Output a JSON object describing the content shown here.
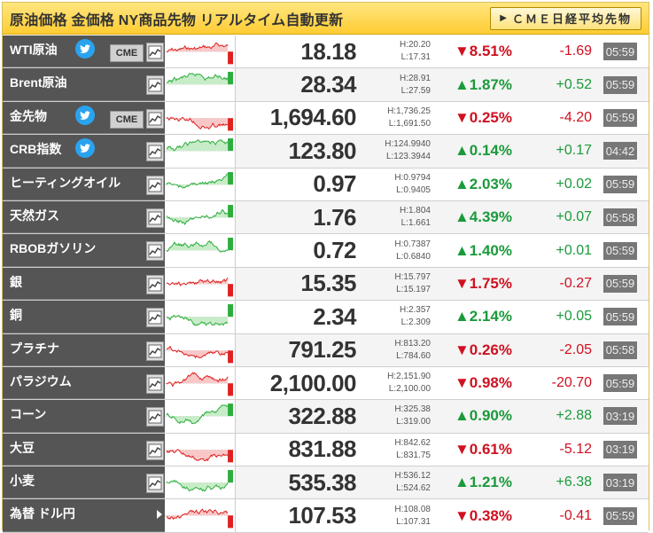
{
  "header": {
    "title": "原油価格 金価格 NY商品先物 リアルタイム自動更新",
    "button_label": "ＣＭＥ日経平均先物"
  },
  "rows": [
    {
      "name": "WTI原油",
      "twitter": true,
      "cme": true,
      "price": "18.18",
      "high": "H:20.20",
      "low": "L:17.31",
      "pct": "▼8.51%",
      "chg": "-1.69",
      "time": "05:59",
      "dir": "down"
    },
    {
      "name": "Brent原油",
      "twitter": false,
      "cme": false,
      "price": "28.34",
      "high": "H:28.91",
      "low": "L:27.59",
      "pct": "▲1.87%",
      "chg": "+0.52",
      "time": "05:59",
      "dir": "up"
    },
    {
      "name": "金先物",
      "twitter": true,
      "cme": true,
      "price": "1,694.60",
      "high": "H:1,736.25",
      "low": "L:1,691.50",
      "pct": "▼0.25%",
      "chg": "-4.20",
      "time": "05:59",
      "dir": "down"
    },
    {
      "name": "CRB指数",
      "twitter": true,
      "cme": false,
      "price": "123.80",
      "high": "H:124.9940",
      "low": "L:123.3944",
      "pct": "▲0.14%",
      "chg": "+0.17",
      "time": "04:42",
      "dir": "up"
    },
    {
      "name": "ヒーティングオイル",
      "twitter": false,
      "cme": false,
      "price": "0.97",
      "high": "H:0.9794",
      "low": "L:0.9405",
      "pct": "▲2.03%",
      "chg": "+0.02",
      "time": "05:59",
      "dir": "up"
    },
    {
      "name": "天然ガス",
      "twitter": false,
      "cme": false,
      "price": "1.76",
      "high": "H:1.804",
      "low": "L:1.661",
      "pct": "▲4.39%",
      "chg": "+0.07",
      "time": "05:58",
      "dir": "up"
    },
    {
      "name": "RBOBガソリン",
      "twitter": false,
      "cme": false,
      "price": "0.72",
      "high": "H:0.7387",
      "low": "L:0.6840",
      "pct": "▲1.40%",
      "chg": "+0.01",
      "time": "05:59",
      "dir": "up"
    },
    {
      "name": "銀",
      "twitter": false,
      "cme": false,
      "price": "15.35",
      "high": "H:15.797",
      "low": "L:15.197",
      "pct": "▼1.75%",
      "chg": "-0.27",
      "time": "05:59",
      "dir": "down"
    },
    {
      "name": "銅",
      "twitter": false,
      "cme": false,
      "price": "2.34",
      "high": "H:2.357",
      "low": "L:2.309",
      "pct": "▲2.14%",
      "chg": "+0.05",
      "time": "05:59",
      "dir": "up"
    },
    {
      "name": "プラチナ",
      "twitter": false,
      "cme": false,
      "price": "791.25",
      "high": "H:813.20",
      "low": "L:784.60",
      "pct": "▼0.26%",
      "chg": "-2.05",
      "time": "05:58",
      "dir": "down"
    },
    {
      "name": "パラジウム",
      "twitter": false,
      "cme": false,
      "price": "2,100.00",
      "high": "H:2,151.90",
      "low": "L:2,100.00",
      "pct": "▼0.98%",
      "chg": "-20.70",
      "time": "05:59",
      "dir": "down"
    },
    {
      "name": "コーン",
      "twitter": false,
      "cme": false,
      "price": "322.88",
      "high": "H:325.38",
      "low": "L:319.00",
      "pct": "▲0.90%",
      "chg": "+2.88",
      "time": "03:19",
      "dir": "up"
    },
    {
      "name": "大豆",
      "twitter": false,
      "cme": false,
      "price": "831.88",
      "high": "H:842.62",
      "low": "L:831.75",
      "pct": "▼0.61%",
      "chg": "-5.12",
      "time": "03:19",
      "dir": "down"
    },
    {
      "name": "小麦",
      "twitter": false,
      "cme": false,
      "price": "535.38",
      "high": "H:536.12",
      "low": "L:524.62",
      "pct": "▲1.21%",
      "chg": "+6.38",
      "time": "03:19",
      "dir": "up"
    },
    {
      "name": "為替 ドル円",
      "twitter": false,
      "cme": false,
      "price": "107.53",
      "high": "H:108.08",
      "low": "L:107.31",
      "pct": "▼0.38%",
      "chg": "-0.41",
      "time": "05:59",
      "dir": "down"
    }
  ],
  "icons": {
    "twitter": "twitter-icon",
    "chart": "chart-icon",
    "play": "play-arrow-icon"
  },
  "colors": {
    "up": "#1a9a3a",
    "down": "#d01020",
    "header_bg": "#ffcc33",
    "name_bg": "#555555"
  }
}
